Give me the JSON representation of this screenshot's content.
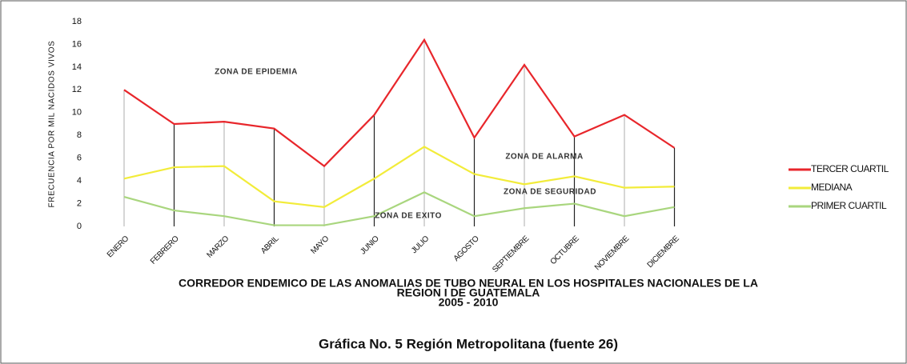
{
  "chart_data": {
    "type": "line",
    "title": [
      "CORREDOR ENDEMICO DE LAS ANOMALIAS DE TUBO NEURAL EN LOS HOSPITALES NACIONALES DE LA",
      "REGION I DE GUATEMALA",
      "2005 - 2010"
    ],
    "subtitle": "Gráfica No. 5 Región Metropolitana (fuente 26)",
    "y_label": "FRECUENCIA POR MIL NACIDOS VIVOS",
    "categories": [
      "ENERO",
      "FEBRERO",
      "MARZO",
      "ABRIL",
      "MAYO",
      "JUNIO",
      "JULIO",
      "AGOSTO",
      "SEPTIEMBRE",
      "OCTUBRE",
      "NOVIEMBRE",
      "DICIEMBRE"
    ],
    "series": [
      {
        "name": "TERCER CUARTIL",
        "color": "#e8262b",
        "values": [
          12,
          9,
          9.2,
          8.6,
          5.3,
          9.8,
          16.4,
          7.8,
          14.2,
          7.9,
          9.8,
          6.9
        ]
      },
      {
        "name": "MEDIANA",
        "color": "#f2ec3a",
        "values": [
          4.2,
          5.2,
          5.3,
          2.2,
          1.7,
          4.2,
          7,
          4.6,
          3.7,
          4.4,
          3.4,
          3.5
        ]
      },
      {
        "name": "PRIMER CUARTIL",
        "color": "#a9d67e",
        "values": [
          2.6,
          1.4,
          0.9,
          0.1,
          0.1,
          0.9,
          3,
          0.9,
          1.6,
          2,
          0.9,
          1.7
        ]
      }
    ],
    "annotations": [
      "ZONA DE EPIDEMIA",
      "ZONA DE ALARMA",
      "ZONA DE SEGURIDAD",
      "ZONA DE EXITO"
    ],
    "ylim": [
      0,
      18
    ],
    "yticks": [
      0,
      2,
      4,
      6,
      8,
      10,
      12,
      14,
      16,
      18
    ],
    "legend": "right"
  }
}
